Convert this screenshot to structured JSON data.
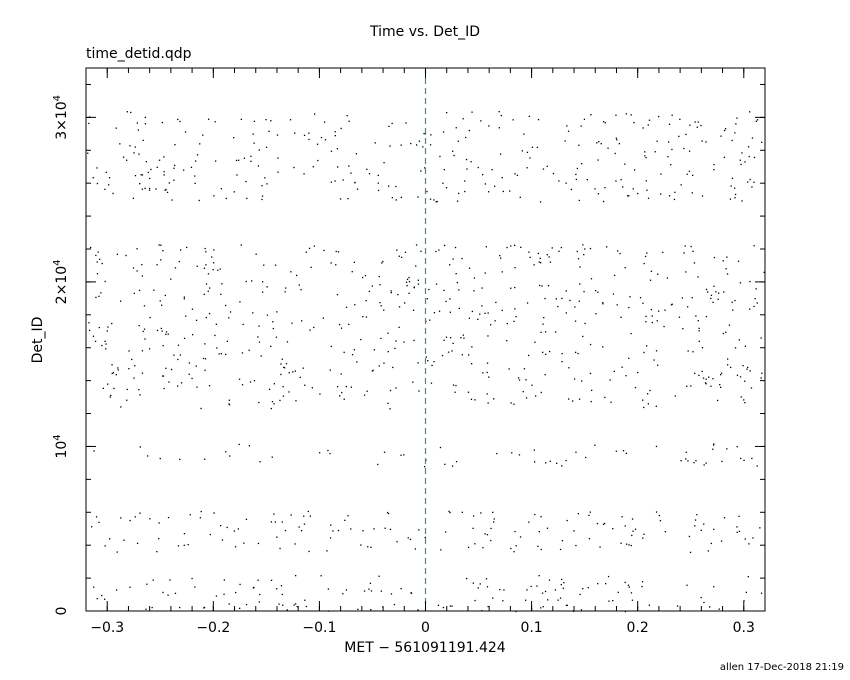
{
  "chart_data": {
    "type": "scatter",
    "title": "Time vs. Det_ID",
    "subtitle": "time_detid.qdp",
    "xlabel": "MET − 561091191.424",
    "ylabel": "Det_ID",
    "xlim": [
      -0.32,
      0.32
    ],
    "ylim": [
      0,
      33000
    ],
    "x_ticks": [
      {
        "value": -0.3,
        "label": "−0.3"
      },
      {
        "value": -0.2,
        "label": "−0.2"
      },
      {
        "value": -0.1,
        "label": "−0.1"
      },
      {
        "value": 0,
        "label": "0"
      },
      {
        "value": 0.1,
        "label": "0.1"
      },
      {
        "value": 0.2,
        "label": "0.2"
      },
      {
        "value": 0.3,
        "label": "0.3"
      }
    ],
    "y_ticks": [
      {
        "value": 0,
        "base": "0",
        "exp": ""
      },
      {
        "value": 10000,
        "base": "10",
        "exp": "4"
      },
      {
        "value": 20000,
        "base": "2×10",
        "exp": "4"
      },
      {
        "value": 30000,
        "base": "3×10",
        "exp": "4"
      }
    ],
    "vertical_line": {
      "x": 0,
      "color": "#1a9a9a",
      "style": "dashed"
    },
    "point_color": "#000000",
    "bands": [
      {
        "y_range": [
          0,
          2200
        ],
        "density": 1.0
      },
      {
        "y_range": [
          3600,
          6100
        ],
        "density": 1.0
      },
      {
        "y_range": [
          8800,
          10200
        ],
        "density": 0.7
      },
      {
        "y_range": [
          12300,
          22300
        ],
        "density": 1.0
      },
      {
        "y_range": [
          24900,
          30400
        ],
        "density": 1.0
      }
    ],
    "grid": false,
    "legend": "none"
  },
  "footer": {
    "credit": "allen 17-Dec-2018 21:19"
  }
}
